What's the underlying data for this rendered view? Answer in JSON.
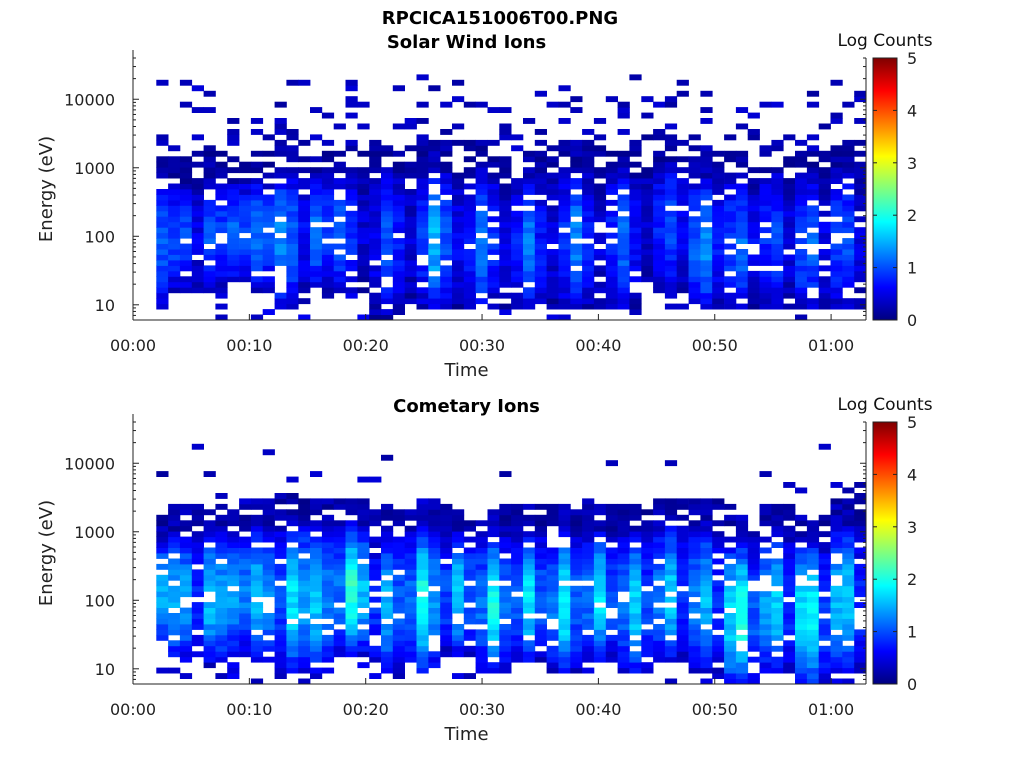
{
  "figure_title": "RPCICA151006T00.PNG",
  "colormap": [
    "#00007f",
    "#0000ff",
    "#007fff",
    "#00ffff",
    "#7fff7f",
    "#ffff00",
    "#ff7f00",
    "#ff0000",
    "#7f0000"
  ],
  "chart_data": [
    {
      "type": "heatmap",
      "title": "Solar Wind Ions",
      "xlabel": "Time",
      "ylabel": "Energy (eV)",
      "x_tick_labels": [
        "00:00",
        "00:10",
        "00:20",
        "00:30",
        "00:40",
        "00:50",
        "01:00"
      ],
      "x_ticks_minutes": [
        0,
        10,
        20,
        30,
        40,
        50,
        60
      ],
      "xlim_minutes": [
        0,
        63
      ],
      "data_start_minute": 2,
      "y_scale": "log",
      "y_tick_labels": [
        "10",
        "100",
        "1000",
        "10000"
      ],
      "y_ticks": [
        10,
        100,
        1000,
        10000
      ],
      "ylim": [
        6,
        40000
      ],
      "colorbar": {
        "label": "Log Counts",
        "range": [
          0,
          5
        ],
        "tick_labels": [
          "0",
          "1",
          "2",
          "3",
          "4",
          "5"
        ]
      },
      "columns": 60,
      "rows": 48,
      "time_bins": [
        {
          "t": 2,
          "lo": 10,
          "hi": 1500,
          "peak": 1.3
        },
        {
          "t": 4,
          "lo": 20,
          "hi": 1200,
          "peak": 1.2
        },
        {
          "t": 7,
          "lo": 20,
          "hi": 1500,
          "peak": 1.2
        },
        {
          "t": 9,
          "lo": 25,
          "hi": 1200,
          "peak": 1.3
        },
        {
          "t": 11,
          "lo": 20,
          "hi": 1500,
          "peak": 1.3
        },
        {
          "t": 13,
          "lo": 10,
          "hi": 2000,
          "peak": 1.5
        },
        {
          "t": 16,
          "lo": 20,
          "hi": 1500,
          "peak": 1.3
        },
        {
          "t": 18,
          "lo": 20,
          "hi": 1500,
          "peak": 1.2
        },
        {
          "t": 22,
          "lo": 8,
          "hi": 2000,
          "peak": 1.1
        },
        {
          "t": 26,
          "lo": 10,
          "hi": 2000,
          "peak": 1.6
        },
        {
          "t": 30,
          "lo": 10,
          "hi": 2000,
          "peak": 1.3
        },
        {
          "t": 34,
          "lo": 10,
          "hi": 1500,
          "peak": 1.2
        },
        {
          "t": 38,
          "lo": 10,
          "hi": 2000,
          "peak": 1.3
        },
        {
          "t": 42,
          "lo": 10,
          "hi": 2000,
          "peak": 1.2
        },
        {
          "t": 46,
          "lo": 20,
          "hi": 2500,
          "peak": 1.1
        },
        {
          "t": 49,
          "lo": 10,
          "hi": 1500,
          "peak": 1.5
        },
        {
          "t": 52,
          "lo": 10,
          "hi": 1500,
          "peak": 1.3
        },
        {
          "t": 55,
          "lo": 10,
          "hi": 2000,
          "peak": 1.1
        },
        {
          "t": 58,
          "lo": 10,
          "hi": 1500,
          "peak": 1.3
        },
        {
          "t": 61,
          "lo": 10,
          "hi": 2000,
          "peak": 1.2
        }
      ]
    },
    {
      "type": "heatmap",
      "title": "Cometary Ions",
      "xlabel": "Time",
      "ylabel": "Energy (eV)",
      "x_tick_labels": [
        "00:00",
        "00:10",
        "00:20",
        "00:30",
        "00:40",
        "00:50",
        "01:00"
      ],
      "x_ticks_minutes": [
        0,
        10,
        20,
        30,
        40,
        50,
        60
      ],
      "xlim_minutes": [
        0,
        63
      ],
      "data_start_minute": 2,
      "y_scale": "log",
      "y_tick_labels": [
        "10",
        "100",
        "1000",
        "10000"
      ],
      "y_ticks": [
        10,
        100,
        1000,
        10000
      ],
      "ylim": [
        6,
        40000
      ],
      "colorbar": {
        "label": "Log Counts",
        "range": [
          0,
          5
        ],
        "tick_labels": [
          "0",
          "1",
          "2",
          "3",
          "4",
          "5"
        ]
      },
      "columns": 60,
      "rows": 48,
      "time_bins": [
        {
          "t": 2,
          "lo": 30,
          "hi": 1500,
          "peak": 1.9
        },
        {
          "t": 4,
          "lo": 15,
          "hi": 2000,
          "peak": 1.8
        },
        {
          "t": 7,
          "lo": 15,
          "hi": 2000,
          "peak": 1.9
        },
        {
          "t": 9,
          "lo": 20,
          "hi": 2000,
          "peak": 1.7
        },
        {
          "t": 11,
          "lo": 15,
          "hi": 2500,
          "peak": 1.8
        },
        {
          "t": 14,
          "lo": 10,
          "hi": 3000,
          "peak": 2.0
        },
        {
          "t": 16,
          "lo": 10,
          "hi": 2500,
          "peak": 1.8
        },
        {
          "t": 19,
          "lo": 20,
          "hi": 2500,
          "peak": 2.3
        },
        {
          "t": 22,
          "lo": 10,
          "hi": 2000,
          "peak": 1.6
        },
        {
          "t": 25,
          "lo": 10,
          "hi": 2500,
          "peak": 2.1
        },
        {
          "t": 28,
          "lo": 20,
          "hi": 2000,
          "peak": 1.7
        },
        {
          "t": 31,
          "lo": 10,
          "hi": 2000,
          "peak": 2.0
        },
        {
          "t": 34,
          "lo": 15,
          "hi": 2000,
          "peak": 1.8
        },
        {
          "t": 37,
          "lo": 10,
          "hi": 2000,
          "peak": 1.9
        },
        {
          "t": 40,
          "lo": 15,
          "hi": 2000,
          "peak": 1.8
        },
        {
          "t": 43,
          "lo": 10,
          "hi": 2000,
          "peak": 1.8
        },
        {
          "t": 46,
          "lo": 15,
          "hi": 2500,
          "peak": 1.8
        },
        {
          "t": 49,
          "lo": 10,
          "hi": 2500,
          "peak": 1.7
        },
        {
          "t": 52,
          "lo": 6,
          "hi": 1500,
          "peak": 2.3
        },
        {
          "t": 55,
          "lo": 10,
          "hi": 2000,
          "peak": 1.9
        },
        {
          "t": 58,
          "lo": 6,
          "hi": 1500,
          "peak": 2.3
        },
        {
          "t": 61,
          "lo": 10,
          "hi": 2500,
          "peak": 2.0
        }
      ]
    }
  ]
}
